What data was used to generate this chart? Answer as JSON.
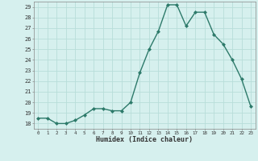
{
  "x": [
    0,
    1,
    2,
    3,
    4,
    5,
    6,
    7,
    8,
    9,
    10,
    11,
    12,
    13,
    14,
    15,
    16,
    17,
    18,
    19,
    20,
    21,
    22,
    23
  ],
  "y": [
    18.5,
    18.5,
    18.0,
    18.0,
    18.3,
    18.8,
    19.4,
    19.4,
    19.2,
    19.2,
    20.0,
    22.8,
    25.0,
    26.7,
    29.2,
    29.2,
    27.2,
    28.5,
    28.5,
    26.4,
    25.5,
    24.0,
    22.2,
    19.6
  ],
  "xlabel": "Humidex (Indice chaleur)",
  "ylim": [
    17.5,
    29.5
  ],
  "xlim": [
    -0.5,
    23.5
  ],
  "yticks": [
    18,
    19,
    20,
    21,
    22,
    23,
    24,
    25,
    26,
    27,
    28,
    29
  ],
  "xticks": [
    0,
    1,
    2,
    3,
    4,
    5,
    6,
    7,
    8,
    9,
    10,
    11,
    12,
    13,
    14,
    15,
    16,
    17,
    18,
    19,
    20,
    21,
    22,
    23
  ],
  "line_color": "#2d7a6a",
  "bg_color": "#d6f0ee",
  "grid_color": "#b8ddd9"
}
